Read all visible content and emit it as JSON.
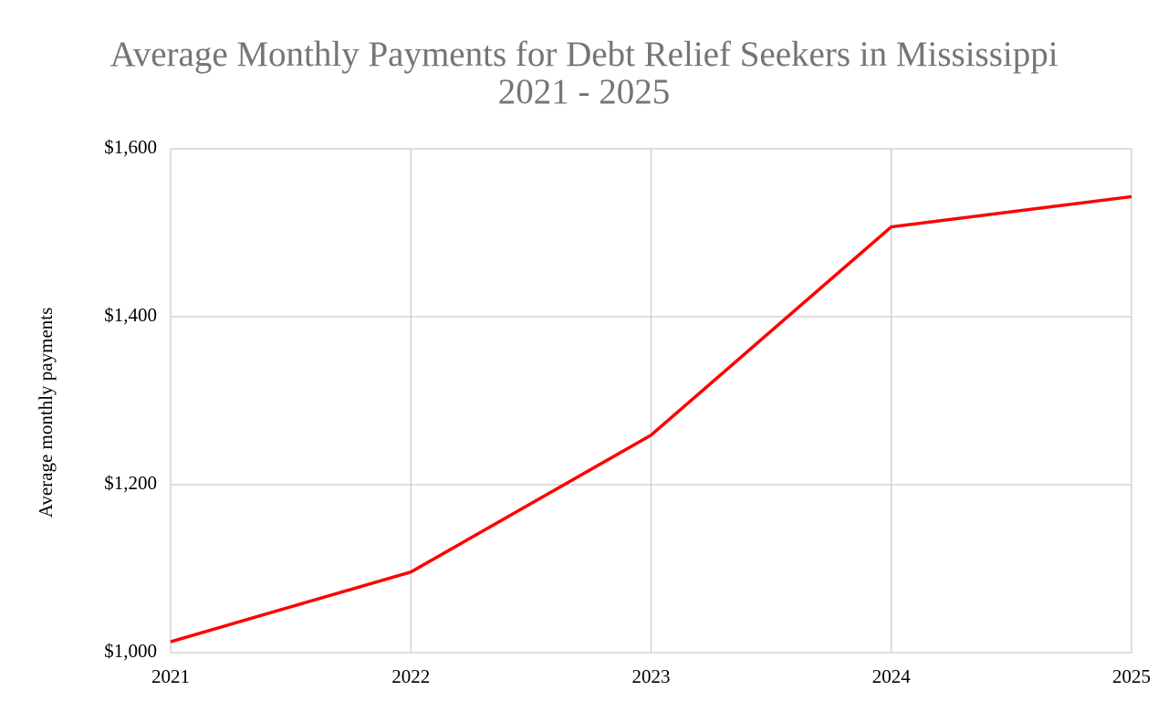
{
  "chart_data": {
    "type": "line",
    "title": "Average Monthly Payments for Debt Relief Seekers in Mississippi",
    "subtitle": "2021  - 2025",
    "y_label": "Average monthly payments",
    "x": [
      2021,
      2022,
      2023,
      2024,
      2025
    ],
    "series": [
      {
        "color": "#ff0000",
        "values": [
          1013,
          1096,
          1259,
          1507,
          1543
        ]
      }
    ],
    "xlim": [
      2021,
      2025
    ],
    "xticks": [
      2021,
      2022,
      2023,
      2024,
      2025
    ],
    "ylim": [
      1000,
      1600
    ],
    "yticks": [
      {
        "value": 1000,
        "label": "$1,000"
      },
      {
        "value": 1200,
        "label": "$1,200"
      },
      {
        "value": 1400,
        "label": "$1,400"
      },
      {
        "value": 1600,
        "label": "$1,600"
      }
    ],
    "grid": true
  }
}
